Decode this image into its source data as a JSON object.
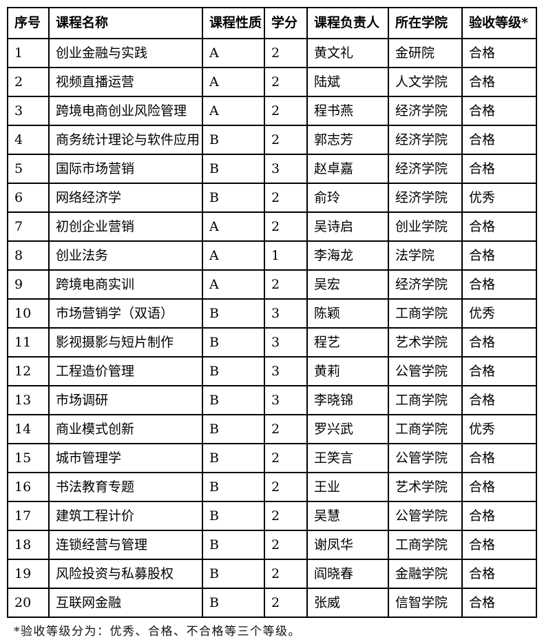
{
  "table": {
    "columns": [
      "序号",
      "课程名称",
      "课程性质",
      "学分",
      "课程负责人",
      "所在学院",
      "验收等级*"
    ],
    "rows": [
      {
        "no": "1",
        "course_name": "创业金融与实践",
        "course_nature": "A",
        "credits": "2",
        "leader": "黄文礼",
        "college": "金研院",
        "grade": "合格"
      },
      {
        "no": "2",
        "course_name": "视频直播运营",
        "course_nature": "A",
        "credits": "2",
        "leader": "陆斌",
        "college": "人文学院",
        "grade": "合格"
      },
      {
        "no": "3",
        "course_name": "跨境电商创业风险管理",
        "course_nature": "A",
        "credits": "2",
        "leader": "程书燕",
        "college": "经济学院",
        "grade": "合格"
      },
      {
        "no": "4",
        "course_name": "商务统计理论与软件应用",
        "course_nature": "B",
        "credits": "2",
        "leader": "郭志芳",
        "college": "经济学院",
        "grade": "合格"
      },
      {
        "no": "5",
        "course_name": "国际市场营销",
        "course_nature": "B",
        "credits": "3",
        "leader": "赵卓嘉",
        "college": "经济学院",
        "grade": "合格"
      },
      {
        "no": "6",
        "course_name": "网络经济学",
        "course_nature": "B",
        "credits": "2",
        "leader": "俞玲",
        "college": "经济学院",
        "grade": "优秀"
      },
      {
        "no": "7",
        "course_name": "初创企业营销",
        "course_nature": "A",
        "credits": "2",
        "leader": "吴诗启",
        "college": "创业学院",
        "grade": "合格"
      },
      {
        "no": "8",
        "course_name": "创业法务",
        "course_nature": "A",
        "credits": "1",
        "leader": "李海龙",
        "college": "法学院",
        "grade": "合格"
      },
      {
        "no": "9",
        "course_name": "跨境电商实训",
        "course_nature": "A",
        "credits": "2",
        "leader": "吴宏",
        "college": "经济学院",
        "grade": "合格"
      },
      {
        "no": "10",
        "course_name": "市场营销学（双语）",
        "course_nature": "B",
        "credits": "3",
        "leader": "陈颖",
        "college": "工商学院",
        "grade": "优秀"
      },
      {
        "no": "11",
        "course_name": "影视摄影与短片制作",
        "course_nature": "B",
        "credits": "3",
        "leader": "程艺",
        "college": "艺术学院",
        "grade": "合格"
      },
      {
        "no": "12",
        "course_name": "工程造价管理",
        "course_nature": "B",
        "credits": "3",
        "leader": "黄莉",
        "college": "公管学院",
        "grade": "合格"
      },
      {
        "no": "13",
        "course_name": "市场调研",
        "course_nature": "B",
        "credits": "3",
        "leader": "李晓锦",
        "college": "工商学院",
        "grade": "合格"
      },
      {
        "no": "14",
        "course_name": "商业模式创新",
        "course_nature": "B",
        "credits": "2",
        "leader": "罗兴武",
        "college": "工商学院",
        "grade": "优秀"
      },
      {
        "no": "15",
        "course_name": "城市管理学",
        "course_nature": "B",
        "credits": "2",
        "leader": "王笑言",
        "college": "公管学院",
        "grade": "合格"
      },
      {
        "no": "16",
        "course_name": "书法教育专题",
        "course_nature": "B",
        "credits": "2",
        "leader": "王业",
        "college": "艺术学院",
        "grade": "合格"
      },
      {
        "no": "17",
        "course_name": "建筑工程计价",
        "course_nature": "B",
        "credits": "2",
        "leader": "吴慧",
        "college": "公管学院",
        "grade": "合格"
      },
      {
        "no": "18",
        "course_name": "连锁经营与管理",
        "course_nature": "B",
        "credits": "2",
        "leader": "谢凤华",
        "college": "工商学院",
        "grade": "合格"
      },
      {
        "no": "19",
        "course_name": "风险投资与私募股权",
        "course_nature": "B",
        "credits": "2",
        "leader": "阎晓春",
        "college": "金融学院",
        "grade": "合格"
      },
      {
        "no": "20",
        "course_name": "互联网金融",
        "course_nature": "B",
        "credits": "2",
        "leader": "张威",
        "college": "信智学院",
        "grade": "合格"
      }
    ]
  },
  "footnote": "*验收等级分为：优秀、合格、不合格等三个等级。"
}
